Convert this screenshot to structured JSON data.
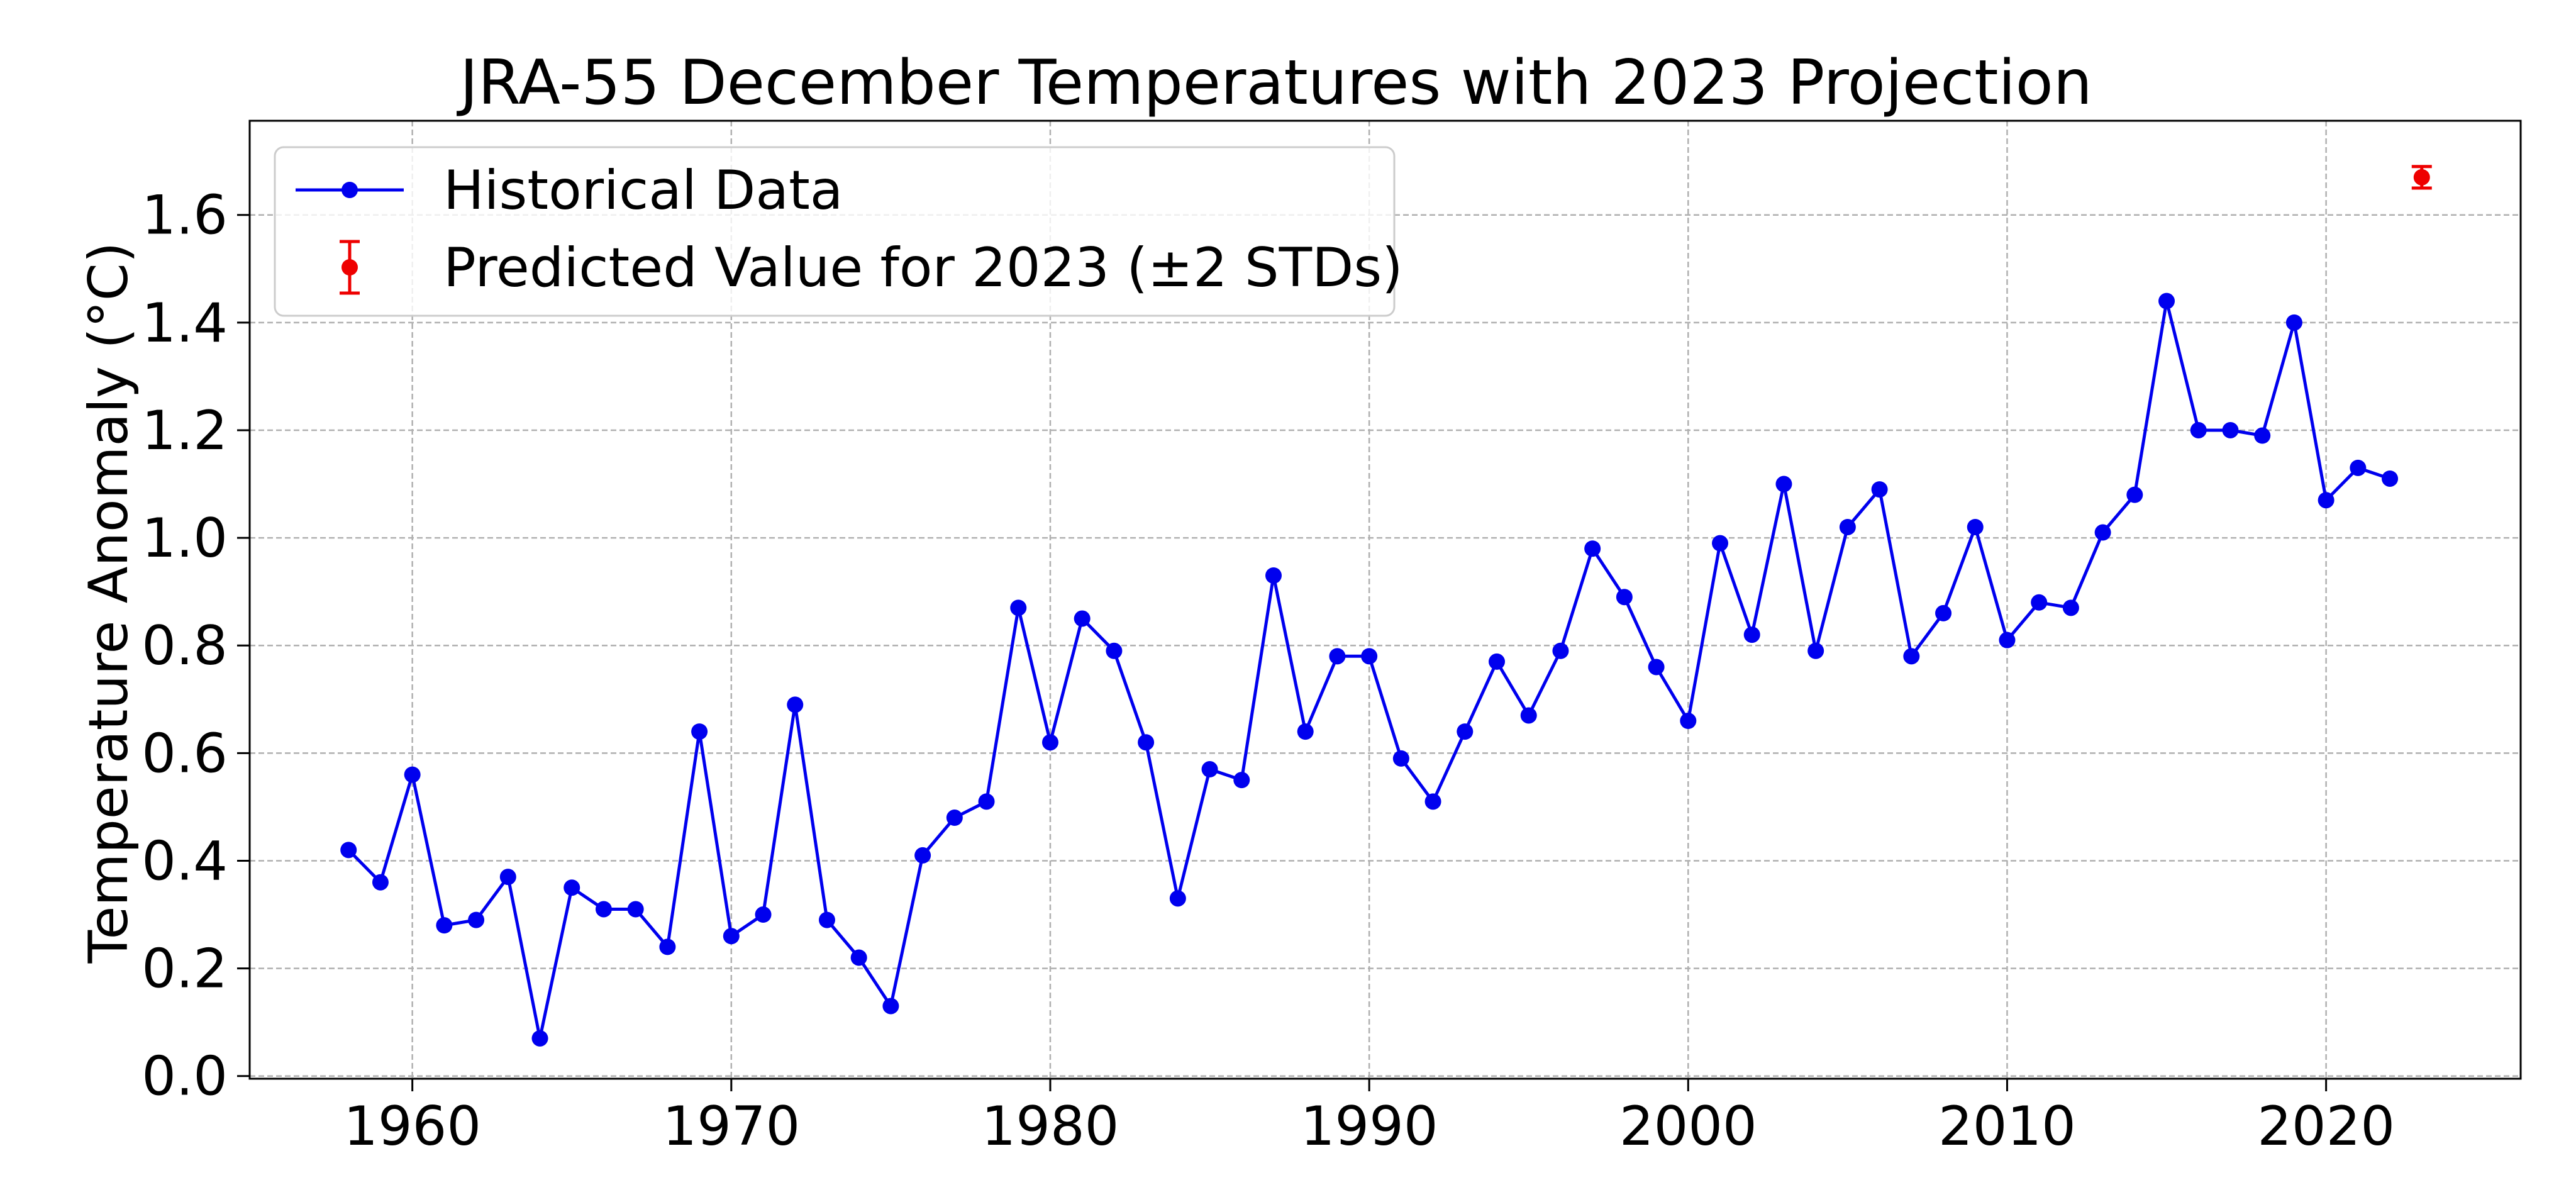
{
  "chart_data": {
    "type": "line",
    "title": "JRA-55 December Temperatures with 2023 Projection",
    "xlabel": "",
    "ylabel": "Temperature Anomaly (°C)",
    "xlim": [
      1954.9,
      2026.1
    ],
    "ylim": [
      -0.005,
      1.775
    ],
    "x_ticks": [
      1960,
      1970,
      1980,
      1990,
      2000,
      2010,
      2020
    ],
    "x_tick_labels": [
      "1960",
      "1970",
      "1980",
      "1990",
      "2000",
      "2010",
      "2020"
    ],
    "y_ticks": [
      0.0,
      0.2,
      0.4,
      0.6,
      0.8,
      1.0,
      1.2,
      1.4,
      1.6
    ],
    "y_tick_labels": [
      "0.0",
      "0.2",
      "0.4",
      "0.6",
      "0.8",
      "1.0",
      "1.2",
      "1.4",
      "1.6"
    ],
    "grid": true,
    "legend_position": "upper-left",
    "series": [
      {
        "name": "Historical Data",
        "color": "#0000ee",
        "marker": "circle",
        "x": [
          1958,
          1959,
          1960,
          1961,
          1962,
          1963,
          1964,
          1965,
          1966,
          1967,
          1968,
          1969,
          1970,
          1971,
          1972,
          1973,
          1974,
          1975,
          1976,
          1977,
          1978,
          1979,
          1980,
          1981,
          1982,
          1983,
          1984,
          1985,
          1986,
          1987,
          1988,
          1989,
          1990,
          1991,
          1992,
          1993,
          1994,
          1995,
          1996,
          1997,
          1998,
          1999,
          2000,
          2001,
          2002,
          2003,
          2004,
          2005,
          2006,
          2007,
          2008,
          2009,
          2010,
          2011,
          2012,
          2013,
          2014,
          2015,
          2016,
          2017,
          2018,
          2019,
          2020,
          2021,
          2022
        ],
        "y": [
          0.42,
          0.36,
          0.56,
          0.28,
          0.29,
          0.37,
          0.07,
          0.35,
          0.31,
          0.31,
          0.24,
          0.64,
          0.26,
          0.3,
          0.69,
          0.29,
          0.22,
          0.13,
          0.41,
          0.48,
          0.51,
          0.87,
          0.62,
          0.85,
          0.79,
          0.62,
          0.33,
          0.57,
          0.55,
          0.93,
          0.64,
          0.78,
          0.78,
          0.59,
          0.51,
          0.64,
          0.77,
          0.67,
          0.79,
          0.98,
          0.89,
          0.76,
          0.66,
          0.99,
          0.82,
          1.1,
          0.79,
          1.02,
          1.09,
          0.78,
          0.86,
          1.02,
          0.81,
          0.88,
          0.87,
          1.01,
          1.08,
          1.44,
          1.2,
          1.2,
          1.19,
          1.4,
          1.07,
          1.13,
          1.11
        ]
      },
      {
        "name": "Predicted Value for 2023 (±2 STDs)",
        "color": "#ee0000",
        "marker": "circle",
        "x": [
          2023
        ],
        "y": [
          1.67
        ],
        "error": [
          0.02
        ]
      }
    ]
  }
}
